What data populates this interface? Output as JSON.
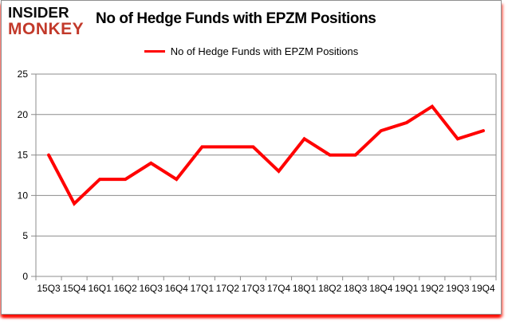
{
  "logo": {
    "line1": "INSIDER",
    "line2": "MONKEY"
  },
  "header": {
    "title": "No of Hedge Funds with EPZM Positions"
  },
  "legend": {
    "label": "No of Hedge Funds with EPZM Positions",
    "swatch_color": "#ff0000"
  },
  "colors": {
    "series_red": "#ff0000",
    "logo_red": "#c2392a",
    "gridline_gray": "#8c8c8c",
    "axis_text": "#000000",
    "frame_border": "#8f8f8f",
    "frame_glow": "#ff0a00"
  },
  "chart_data": {
    "type": "line",
    "title": "No of Hedge Funds with EPZM Positions",
    "categories": [
      "15Q3",
      "15Q4",
      "16Q1",
      "16Q2",
      "16Q3",
      "16Q4",
      "17Q1",
      "17Q2",
      "17Q3",
      "17Q4",
      "18Q1",
      "18Q2",
      "18Q3",
      "18Q4",
      "19Q1",
      "19Q2",
      "19Q3",
      "19Q4"
    ],
    "series": [
      {
        "name": "No of Hedge Funds with EPZM Positions",
        "values": [
          15,
          9,
          12,
          12,
          14,
          12,
          16,
          16,
          16,
          13,
          17,
          15,
          15,
          18,
          19,
          21,
          17,
          18
        ],
        "color": "#ff0000"
      }
    ],
    "xlabel": "",
    "ylabel": "",
    "ylim": [
      0,
      25
    ],
    "yticks": [
      0,
      5,
      10,
      15,
      20,
      25
    ],
    "grid": "horizontal",
    "legend_position": "top-center"
  }
}
